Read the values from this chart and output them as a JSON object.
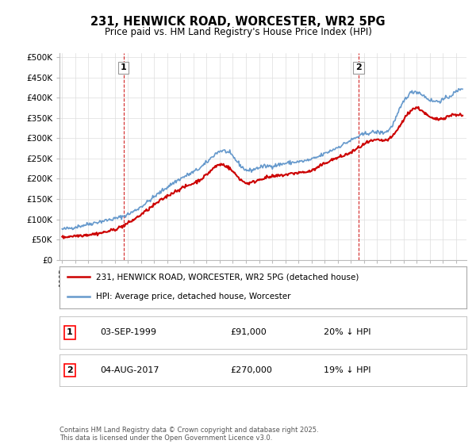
{
  "title": "231, HENWICK ROAD, WORCESTER, WR2 5PG",
  "subtitle": "Price paid vs. HM Land Registry's House Price Index (HPI)",
  "ylabel_ticks": [
    "£0",
    "£50K",
    "£100K",
    "£150K",
    "£200K",
    "£250K",
    "£300K",
    "£350K",
    "£400K",
    "£450K",
    "£500K"
  ],
  "ytick_values": [
    0,
    50000,
    100000,
    150000,
    200000,
    250000,
    300000,
    350000,
    400000,
    450000,
    500000
  ],
  "ylim": [
    0,
    510000
  ],
  "xlim_min": 1994.8,
  "xlim_max": 2025.8,
  "price_paid_color": "#cc0000",
  "hpi_color": "#6699cc",
  "marker1_year": 1999.67,
  "marker1_value": 91000,
  "marker1_label": "1",
  "marker1_date": "03-SEP-1999",
  "marker1_price": "£91,000",
  "marker1_hpi": "20% ↓ HPI",
  "marker2_year": 2017.58,
  "marker2_value": 270000,
  "marker2_label": "2",
  "marker2_date": "04-AUG-2017",
  "marker2_price": "£270,000",
  "marker2_hpi": "19% ↓ HPI",
  "legend_line1": "231, HENWICK ROAD, WORCESTER, WR2 5PG (detached house)",
  "legend_line2": "HPI: Average price, detached house, Worcester",
  "footer": "Contains HM Land Registry data © Crown copyright and database right 2025.\nThis data is licensed under the Open Government Licence v3.0.",
  "background_color": "#ffffff",
  "grid_color": "#dddddd",
  "hpi_bx": [
    1995,
    1997,
    1998,
    2000,
    2002,
    2004,
    2006,
    2007,
    2008,
    2009,
    2010,
    2011,
    2012,
    2013,
    2014,
    2015,
    2016,
    2017,
    2018,
    2019,
    2020,
    2021,
    2022,
    2023,
    2024,
    2025.5
  ],
  "hpi_by": [
    75000,
    88000,
    95000,
    112000,
    155000,
    200000,
    240000,
    268000,
    255000,
    222000,
    228000,
    232000,
    238000,
    242000,
    248000,
    262000,
    278000,
    295000,
    310000,
    315000,
    325000,
    390000,
    415000,
    395000,
    395000,
    425000
  ],
  "pp_bx": [
    1995,
    1997,
    1999,
    2000,
    2002,
    2004,
    2006,
    2007,
    2008,
    2009,
    2010,
    2011,
    2012,
    2013,
    2014,
    2015,
    2016,
    2017,
    2018,
    2019,
    2020,
    2021,
    2022,
    2023,
    2024,
    2025.5
  ],
  "pp_by": [
    55000,
    62000,
    75000,
    90000,
    135000,
    175000,
    210000,
    235000,
    218000,
    190000,
    198000,
    205000,
    210000,
    215000,
    220000,
    238000,
    252000,
    265000,
    285000,
    295000,
    300000,
    345000,
    375000,
    352000,
    350000,
    355000
  ]
}
